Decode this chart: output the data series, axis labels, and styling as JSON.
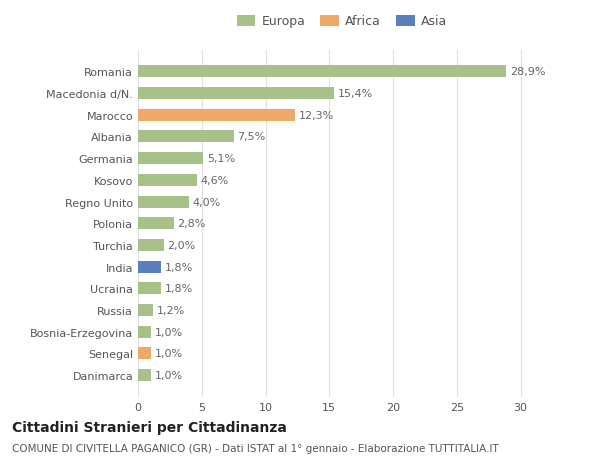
{
  "countries": [
    "Romania",
    "Macedonia d/N.",
    "Marocco",
    "Albania",
    "Germania",
    "Kosovo",
    "Regno Unito",
    "Polonia",
    "Turchia",
    "India",
    "Ucraina",
    "Russia",
    "Bosnia-Erzegovina",
    "Senegal",
    "Danimarca"
  ],
  "values": [
    28.9,
    15.4,
    12.3,
    7.5,
    5.1,
    4.6,
    4.0,
    2.8,
    2.0,
    1.8,
    1.8,
    1.2,
    1.0,
    1.0,
    1.0
  ],
  "labels": [
    "28,9%",
    "15,4%",
    "12,3%",
    "7,5%",
    "5,1%",
    "4,6%",
    "4,0%",
    "2,8%",
    "2,0%",
    "1,8%",
    "1,8%",
    "1,2%",
    "1,0%",
    "1,0%",
    "1,0%"
  ],
  "continents": [
    "Europa",
    "Europa",
    "Africa",
    "Europa",
    "Europa",
    "Europa",
    "Europa",
    "Europa",
    "Europa",
    "Asia",
    "Europa",
    "Europa",
    "Europa",
    "Africa",
    "Europa"
  ],
  "colors": {
    "Europa": "#a8c08a",
    "Africa": "#f0a868",
    "Asia": "#5b7fbd"
  },
  "title": "Cittadini Stranieri per Cittadinanza",
  "subtitle": "COMUNE DI CIVITELLA PAGANICO (GR) - Dati ISTAT al 1° gennaio - Elaborazione TUTTITALIA.IT",
  "xlim": [
    0,
    32
  ],
  "xticks": [
    0,
    5,
    10,
    15,
    20,
    25,
    30
  ],
  "bg_color": "#ffffff",
  "grid_color": "#e0e0e0",
  "bar_height": 0.55,
  "label_fontsize": 8,
  "tick_fontsize": 8,
  "title_fontsize": 10,
  "subtitle_fontsize": 7.5
}
